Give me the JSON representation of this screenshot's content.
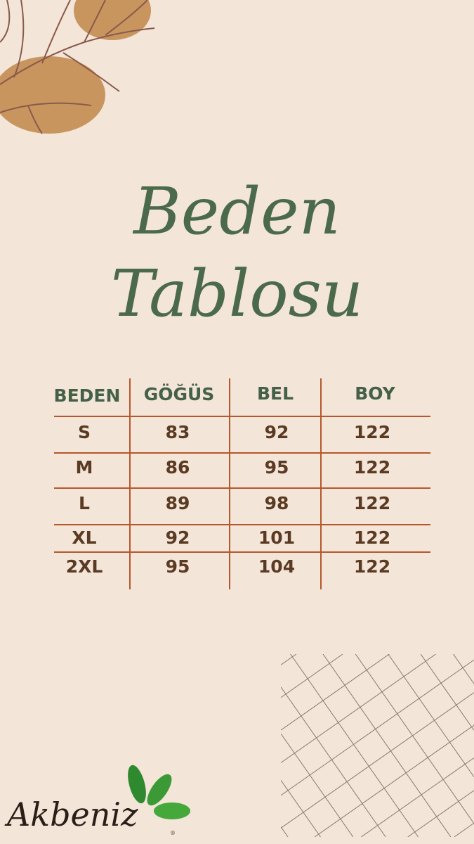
{
  "title": {
    "line1": "Beden",
    "line2": "Tablosu"
  },
  "table": {
    "headers": [
      "BEDEN",
      "GÖĞÜS",
      "BEL",
      "BOY"
    ],
    "rows": [
      [
        "S",
        "83",
        "92",
        "122"
      ],
      [
        "M",
        "86",
        "95",
        "122"
      ],
      [
        "L",
        "89",
        "98",
        "122"
      ],
      [
        "XL",
        "92",
        "101",
        "122"
      ],
      [
        "2XL",
        "95",
        "104",
        "122"
      ]
    ]
  },
  "logo": {
    "text": "Akbeniz",
    "mark": "®"
  },
  "colors": {
    "background": "#f3e5d8",
    "title": "#4b6a4b",
    "header": "#456048",
    "lines": "#b5582d",
    "values": "#5a3a22",
    "blob": "#c9955f"
  }
}
